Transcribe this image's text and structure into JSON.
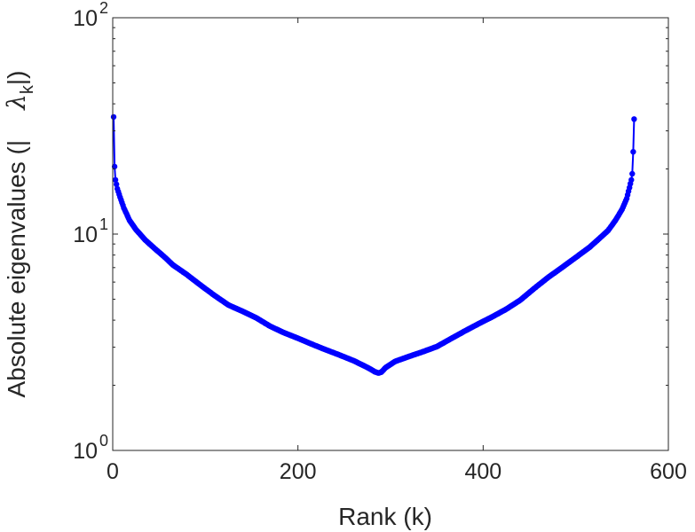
{
  "chart_data": {
    "type": "line",
    "title": "",
    "xlabel": "Rank (k)",
    "ylabel": {
      "prefix": "Absolute eigenvalues (|",
      "lambda": "λ",
      "subscript": "k",
      "suffix": "|)"
    },
    "xlim": [
      0,
      600
    ],
    "ylim": [
      1,
      100
    ],
    "yscale": "log",
    "xticks": [
      {
        "value": 0,
        "label": "0"
      },
      {
        "value": 200,
        "label": "200"
      },
      {
        "value": 400,
        "label": "400"
      },
      {
        "value": 600,
        "label": "600"
      }
    ],
    "yticks": [
      {
        "value": 1,
        "base": "10",
        "exp": "0"
      },
      {
        "value": 10,
        "base": "10",
        "exp": "1"
      },
      {
        "value": 100,
        "base": "10",
        "exp": "2"
      }
    ],
    "grid": false,
    "box": true,
    "series": [
      {
        "color": "#0000ff",
        "marker": "circle",
        "n": 563,
        "x": [
          1,
          2,
          3,
          5,
          8,
          12,
          18,
          25,
          35,
          45,
          55,
          65,
          80,
          95,
          110,
          125,
          140,
          155,
          170,
          185,
          200,
          215,
          230,
          245,
          260,
          270,
          278,
          283,
          287,
          290,
          295,
          305,
          320,
          335,
          350,
          365,
          380,
          395,
          410,
          425,
          440,
          455,
          470,
          485,
          500,
          515,
          525,
          535,
          543,
          550,
          555,
          558,
          560,
          561,
          562,
          563
        ],
        "y": [
          34.8,
          20.5,
          17.8,
          16.2,
          14.8,
          13.2,
          11.6,
          10.5,
          9.4,
          8.6,
          7.9,
          7.2,
          6.5,
          5.8,
          5.2,
          4.7,
          4.4,
          4.1,
          3.75,
          3.5,
          3.3,
          3.1,
          2.92,
          2.76,
          2.6,
          2.48,
          2.38,
          2.31,
          2.28,
          2.3,
          2.42,
          2.58,
          2.72,
          2.86,
          3.02,
          3.28,
          3.56,
          3.85,
          4.15,
          4.5,
          4.95,
          5.6,
          6.3,
          7.0,
          7.8,
          8.7,
          9.5,
          10.4,
          11.6,
          13.0,
          14.6,
          16.4,
          17.8,
          19.0,
          24.0,
          34.0
        ]
      }
    ]
  }
}
